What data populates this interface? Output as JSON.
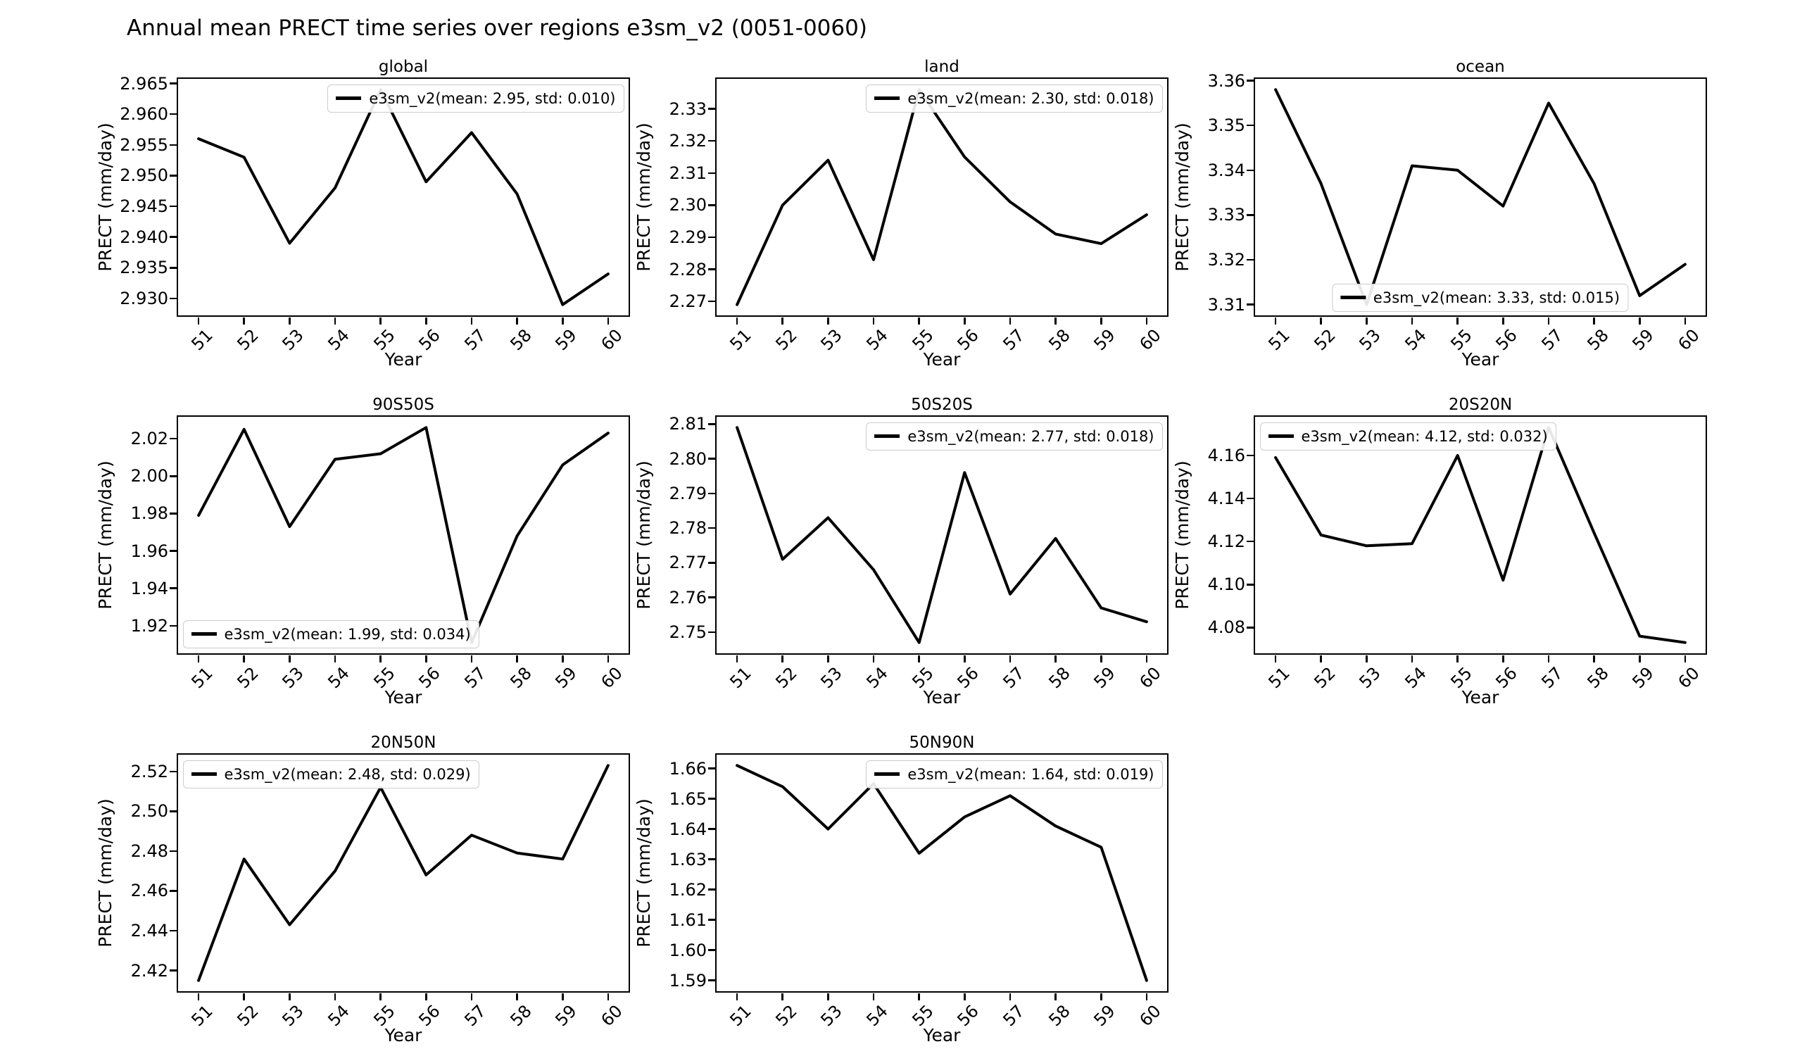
{
  "figure": {
    "title": "Annual mean PRECT time series over regions e3sm_v2 (0051-0060)",
    "background_color": "#ffffff",
    "line_color": "#000000",
    "legend_border_color": "#cccccc"
  },
  "chart_data": [
    {
      "type": "line",
      "title": "global",
      "xlabel": "Year",
      "ylabel": "PRECT (mm/day)",
      "x": [
        51,
        52,
        53,
        54,
        55,
        56,
        57,
        58,
        59,
        60
      ],
      "xtick_labels": [
        "51",
        "52",
        "53",
        "54",
        "55",
        "56",
        "57",
        "58",
        "59",
        "60"
      ],
      "values": [
        2.956,
        2.953,
        2.939,
        2.948,
        2.964,
        2.949,
        2.957,
        2.947,
        2.929,
        2.934
      ],
      "ytick_labels": [
        "2.930",
        "2.935",
        "2.940",
        "2.945",
        "2.950",
        "2.955",
        "2.960",
        "2.965"
      ],
      "series_name": "e3sm_v2",
      "mean": 2.95,
      "std": 0.01,
      "legend_label": "e3sm_v2(mean: 2.95, std: 0.010)",
      "legend_position": "upper-right",
      "grid_pos": [
        0,
        0
      ],
      "grid": false
    },
    {
      "type": "line",
      "title": "land",
      "xlabel": "Year",
      "ylabel": "PRECT (mm/day)",
      "x": [
        51,
        52,
        53,
        54,
        55,
        56,
        57,
        58,
        59,
        60
      ],
      "xtick_labels": [
        "51",
        "52",
        "53",
        "54",
        "55",
        "56",
        "57",
        "58",
        "59",
        "60"
      ],
      "values": [
        2.269,
        2.3,
        2.314,
        2.283,
        2.336,
        2.315,
        2.301,
        2.291,
        2.288,
        2.297
      ],
      "ytick_labels": [
        "2.27",
        "2.28",
        "2.29",
        "2.30",
        "2.31",
        "2.32",
        "2.33"
      ],
      "series_name": "e3sm_v2",
      "mean": 2.3,
      "std": 0.018,
      "legend_label": "e3sm_v2(mean: 2.30, std: 0.018)",
      "legend_position": "upper-right",
      "grid_pos": [
        0,
        1
      ],
      "grid": false
    },
    {
      "type": "line",
      "title": "ocean",
      "xlabel": "Year",
      "ylabel": "PRECT (mm/day)",
      "x": [
        51,
        52,
        53,
        54,
        55,
        56,
        57,
        58,
        59,
        60
      ],
      "xtick_labels": [
        "51",
        "52",
        "53",
        "54",
        "55",
        "56",
        "57",
        "58",
        "59",
        "60"
      ],
      "values": [
        3.358,
        3.337,
        3.31,
        3.341,
        3.34,
        3.332,
        3.355,
        3.337,
        3.312,
        3.319
      ],
      "ytick_labels": [
        "3.31",
        "3.32",
        "3.33",
        "3.34",
        "3.35",
        "3.36"
      ],
      "series_name": "e3sm_v2",
      "mean": 3.33,
      "std": 0.015,
      "legend_label": "e3sm_v2(mean: 3.33, std: 0.015)",
      "legend_position": "lower-center",
      "grid_pos": [
        0,
        2
      ],
      "grid": false
    },
    {
      "type": "line",
      "title": "90S50S",
      "xlabel": "Year",
      "ylabel": "PRECT (mm/day)",
      "x": [
        51,
        52,
        53,
        54,
        55,
        56,
        57,
        58,
        59,
        60
      ],
      "xtick_labels": [
        "51",
        "52",
        "53",
        "54",
        "55",
        "56",
        "57",
        "58",
        "59",
        "60"
      ],
      "values": [
        1.979,
        2.025,
        1.973,
        2.009,
        2.012,
        2.026,
        1.911,
        1.968,
        2.006,
        2.023
      ],
      "ytick_labels": [
        "1.92",
        "1.94",
        "1.96",
        "1.98",
        "2.00",
        "2.02"
      ],
      "series_name": "e3sm_v2",
      "mean": 1.99,
      "std": 0.034,
      "legend_label": "e3sm_v2(mean: 1.99, std: 0.034)",
      "legend_position": "lower-left",
      "grid_pos": [
        1,
        0
      ],
      "grid": false
    },
    {
      "type": "line",
      "title": "50S20S",
      "xlabel": "Year",
      "ylabel": "PRECT (mm/day)",
      "x": [
        51,
        52,
        53,
        54,
        55,
        56,
        57,
        58,
        59,
        60
      ],
      "xtick_labels": [
        "51",
        "52",
        "53",
        "54",
        "55",
        "56",
        "57",
        "58",
        "59",
        "60"
      ],
      "values": [
        2.809,
        2.771,
        2.783,
        2.768,
        2.747,
        2.796,
        2.761,
        2.777,
        2.757,
        2.753
      ],
      "ytick_labels": [
        "2.75",
        "2.76",
        "2.77",
        "2.78",
        "2.79",
        "2.80",
        "2.81"
      ],
      "series_name": "e3sm_v2",
      "mean": 2.77,
      "std": 0.018,
      "legend_label": "e3sm_v2(mean: 2.77, std: 0.018)",
      "legend_position": "upper-right",
      "grid_pos": [
        1,
        1
      ],
      "grid": false
    },
    {
      "type": "line",
      "title": "20S20N",
      "xlabel": "Year",
      "ylabel": "PRECT (mm/day)",
      "x": [
        51,
        52,
        53,
        54,
        55,
        56,
        57,
        58,
        59,
        60
      ],
      "xtick_labels": [
        "51",
        "52",
        "53",
        "54",
        "55",
        "56",
        "57",
        "58",
        "59",
        "60"
      ],
      "values": [
        4.159,
        4.123,
        4.118,
        4.119,
        4.16,
        4.102,
        4.173,
        4.124,
        4.076,
        4.073
      ],
      "ytick_labels": [
        "4.08",
        "4.10",
        "4.12",
        "4.14",
        "4.16"
      ],
      "series_name": "e3sm_v2",
      "mean": 4.12,
      "std": 0.032,
      "legend_label": "e3sm_v2(mean: 4.12, std: 0.032)",
      "legend_position": "upper-left",
      "grid_pos": [
        1,
        2
      ],
      "grid": false
    },
    {
      "type": "line",
      "title": "20N50N",
      "xlabel": "Year",
      "ylabel": "PRECT (mm/day)",
      "x": [
        51,
        52,
        53,
        54,
        55,
        56,
        57,
        58,
        59,
        60
      ],
      "xtick_labels": [
        "51",
        "52",
        "53",
        "54",
        "55",
        "56",
        "57",
        "58",
        "59",
        "60"
      ],
      "values": [
        2.415,
        2.476,
        2.443,
        2.47,
        2.512,
        2.468,
        2.488,
        2.479,
        2.476,
        2.523
      ],
      "ytick_labels": [
        "2.42",
        "2.44",
        "2.46",
        "2.48",
        "2.50",
        "2.52"
      ],
      "series_name": "e3sm_v2",
      "mean": 2.48,
      "std": 0.029,
      "legend_label": "e3sm_v2(mean: 2.48, std: 0.029)",
      "legend_position": "upper-left",
      "grid_pos": [
        2,
        0
      ],
      "grid": false
    },
    {
      "type": "line",
      "title": "50N90N",
      "xlabel": "Year",
      "ylabel": "PRECT (mm/day)",
      "x": [
        51,
        52,
        53,
        54,
        55,
        56,
        57,
        58,
        59,
        60
      ],
      "xtick_labels": [
        "51",
        "52",
        "53",
        "54",
        "55",
        "56",
        "57",
        "58",
        "59",
        "60"
      ],
      "values": [
        1.661,
        1.654,
        1.64,
        1.655,
        1.632,
        1.644,
        1.651,
        1.641,
        1.634,
        1.59
      ],
      "ytick_labels": [
        "1.59",
        "1.60",
        "1.61",
        "1.62",
        "1.63",
        "1.64",
        "1.65",
        "1.66"
      ],
      "series_name": "e3sm_v2",
      "mean": 1.64,
      "std": 0.019,
      "legend_label": "e3sm_v2(mean: 1.64, std: 0.019)",
      "legend_position": "upper-right",
      "grid_pos": [
        2,
        1
      ],
      "grid": false
    }
  ]
}
